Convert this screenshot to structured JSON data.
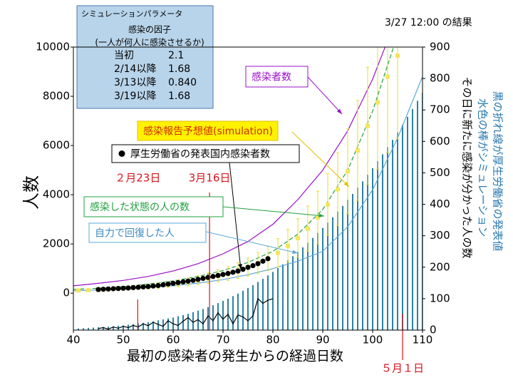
{
  "chart_data": {
    "type": "combo",
    "result_label": "3/27 12:00 の結果",
    "parameters": {
      "title": "シミュレーションパラメータ",
      "subtitle": "感染の因子",
      "note": "(一人が何人に感染させるか)",
      "rows": [
        [
          "当初",
          "2.1"
        ],
        [
          "2/14以降",
          "1.68"
        ],
        [
          "3/13以降",
          "0.840"
        ],
        [
          "3/19以降",
          "1.68"
        ]
      ]
    },
    "xlabel": "最初の感染者の発生からの経過日数",
    "ylabel": "人数",
    "y2label": "その日に新たに感染が分かった人の数",
    "y2notes": [
      "水色の棒がシミュレーション",
      "黒の折れ線が厚生労働省の発表値"
    ],
    "xlim": [
      40,
      110
    ],
    "xticks": [
      40,
      50,
      60,
      70,
      80,
      90,
      100,
      110
    ],
    "ylim": [
      -1500,
      10000
    ],
    "yticks": [
      0,
      2000,
      4000,
      6000,
      8000,
      10000
    ],
    "y2lim": [
      0,
      900
    ],
    "y2ticks": [
      0,
      100,
      200,
      300,
      400,
      500,
      600,
      700,
      800,
      900
    ],
    "markers": [
      {
        "x": 52.9,
        "label": "２月23日"
      },
      {
        "x": 67.3,
        "label": "3月16日"
      },
      {
        "x": 106,
        "label": "５月１日"
      }
    ],
    "series": [
      {
        "name": "感染者数",
        "type": "line",
        "color": "#9b10c8",
        "axis": "y",
        "x": [
          40,
          45,
          50,
          55,
          60,
          65,
          70,
          75,
          80,
          85,
          90,
          95,
          100,
          105
        ],
        "values": [
          300,
          400,
          520,
          680,
          900,
          1200,
          1600,
          2100,
          2800,
          3800,
          5000,
          6600,
          8700,
          11300
        ]
      },
      {
        "name": "感染報告予想値(simulation)",
        "type": "errorscatter",
        "color": "#f2e65a",
        "axis": "y",
        "x": [
          41,
          43,
          45,
          47,
          49,
          51,
          53,
          55,
          57,
          59,
          61,
          63,
          65,
          67,
          69,
          71,
          73,
          75,
          77,
          79,
          81,
          83,
          85,
          87,
          89,
          91,
          93,
          95,
          97,
          99,
          101,
          103,
          105
        ],
        "values": [
          110,
          125,
          140,
          160,
          185,
          210,
          240,
          270,
          310,
          350,
          400,
          460,
          530,
          610,
          700,
          800,
          920,
          1060,
          1220,
          1410,
          1640,
          1920,
          2240,
          2620,
          3070,
          3600,
          4220,
          4950,
          5800,
          6800,
          7750,
          8800,
          9650
        ],
        "errors": [
          40,
          45,
          50,
          55,
          65,
          75,
          85,
          95,
          110,
          120,
          140,
          160,
          185,
          215,
          245,
          280,
          320,
          370,
          430,
          490,
          575,
          670,
          785,
          920,
          1070,
          1260,
          1480,
          1730,
          2030,
          2380,
          2710,
          3080,
          3380
        ]
      },
      {
        "name": "厚生労働省の発表国内感染者数",
        "type": "scatter",
        "color": "#000000",
        "axis": "y",
        "x": [
          45,
          46,
          47,
          48,
          49,
          50,
          51,
          52,
          53,
          54,
          55,
          56,
          57,
          58,
          59,
          60,
          61,
          62,
          63,
          64,
          65,
          66,
          67,
          68,
          69,
          70,
          71,
          72,
          73,
          74,
          75,
          76,
          77,
          78,
          79
        ],
        "values": [
          150,
          160,
          170,
          180,
          190,
          200,
          210,
          225,
          240,
          255,
          270,
          290,
          310,
          340,
          370,
          400,
          430,
          460,
          490,
          520,
          560,
          600,
          640,
          680,
          720,
          760,
          800,
          850,
          900,
          970,
          1050,
          1120,
          1200,
          1300,
          1400
        ]
      },
      {
        "name": "感染した状態の人の数",
        "type": "dashed",
        "color": "#22a040",
        "axis": "y",
        "x": [
          40,
          45,
          50,
          55,
          60,
          65,
          70,
          75,
          80,
          85,
          90,
          95,
          100,
          105
        ],
        "values": [
          150,
          200,
          270,
          370,
          500,
          680,
          920,
          1250,
          1700,
          2400,
          3400,
          5000,
          7400,
          10500
        ]
      },
      {
        "name": "自力で回復した人",
        "type": "line",
        "color": "#5ba8d8",
        "axis": "y",
        "x": [
          40,
          45,
          50,
          55,
          60,
          65,
          70,
          75,
          80,
          85,
          90,
          95,
          100,
          105,
          110
        ],
        "values": [
          100,
          130,
          170,
          230,
          300,
          410,
          550,
          750,
          1000,
          1300,
          1700,
          2700,
          4200,
          6300,
          8800
        ]
      },
      {
        "type": "bar",
        "color": "#2a82a4",
        "axis": "y2",
        "x": [
          41,
          42,
          43,
          44,
          45,
          46,
          47,
          48,
          49,
          50,
          51,
          52,
          53,
          54,
          55,
          56,
          57,
          58,
          59,
          60,
          61,
          62,
          63,
          64,
          65,
          66,
          67,
          68,
          69,
          70,
          71,
          72,
          73,
          74,
          75,
          76,
          77,
          78,
          79,
          80,
          81,
          82,
          83,
          84,
          85,
          86,
          87,
          88,
          89,
          90,
          91,
          92,
          93,
          94,
          95,
          96,
          97,
          98,
          99,
          100,
          101,
          102,
          103,
          104,
          105,
          106,
          107,
          108,
          109,
          110
        ],
        "values": [
          5,
          6,
          7,
          8,
          9,
          10,
          11,
          12,
          14,
          15,
          17,
          19,
          21,
          23,
          25,
          28,
          31,
          34,
          37,
          40,
          44,
          48,
          52,
          57,
          62,
          67,
          73,
          79,
          86,
          93,
          100,
          108,
          116,
          125,
          134,
          143,
          153,
          163,
          174,
          185,
          197,
          209,
          222,
          235,
          249,
          263,
          278,
          293,
          309,
          325,
          342,
          359,
          377,
          395,
          414,
          433,
          453,
          473,
          494,
          515,
          537,
          559,
          582,
          605,
          629,
          653,
          678,
          703,
          729,
          755
        ]
      },
      {
        "type": "line",
        "color": "#000000",
        "axis": "y2",
        "x": [
          45,
          46,
          47,
          48,
          49,
          50,
          51,
          52,
          53,
          54,
          55,
          56,
          57,
          58,
          59,
          60,
          61,
          62,
          63,
          64,
          65,
          66,
          67,
          68,
          69,
          70,
          71,
          72,
          73,
          74,
          75,
          76,
          77,
          78,
          79,
          80
        ],
        "values": [
          5,
          8,
          3,
          10,
          6,
          12,
          8,
          15,
          10,
          20,
          14,
          25,
          18,
          12,
          30,
          20,
          15,
          28,
          40,
          25,
          33,
          20,
          45,
          30,
          55,
          35,
          50,
          20,
          48,
          42,
          30,
          45,
          100,
          85,
          95,
          100
        ]
      }
    ]
  }
}
